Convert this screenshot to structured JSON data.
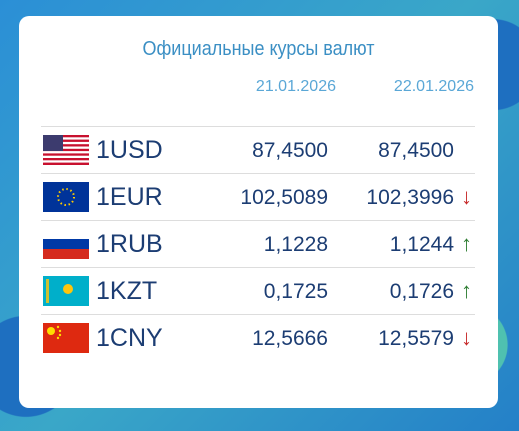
{
  "header": {
    "title": "Официальные курсы валют",
    "dates": [
      "21.01.2026",
      "22.01.2026"
    ]
  },
  "rows": [
    {
      "code": "1USD",
      "rate_1": "87,4500",
      "rate_2": "87,4500"
    },
    {
      "code": "1EUR",
      "rate_1": "102,5089",
      "rate_2": "102,3996",
      "trend": "↓",
      "trend_color": "#c62828"
    },
    {
      "code": "1RUB",
      "rate_1": "1,1228",
      "rate_2": "1,1244",
      "trend": "↑",
      "trend_color": "#2e7d32"
    },
    {
      "code": "1KZT",
      "rate_1": "0,1725",
      "rate_2": "0,1726",
      "trend": "↑",
      "trend_color": "#2e7d32"
    },
    {
      "code": "1CNY",
      "rate_1": "12,5666",
      "rate_2": "12,5579",
      "trend": "↓",
      "trend_color": "#c62828"
    }
  ]
}
